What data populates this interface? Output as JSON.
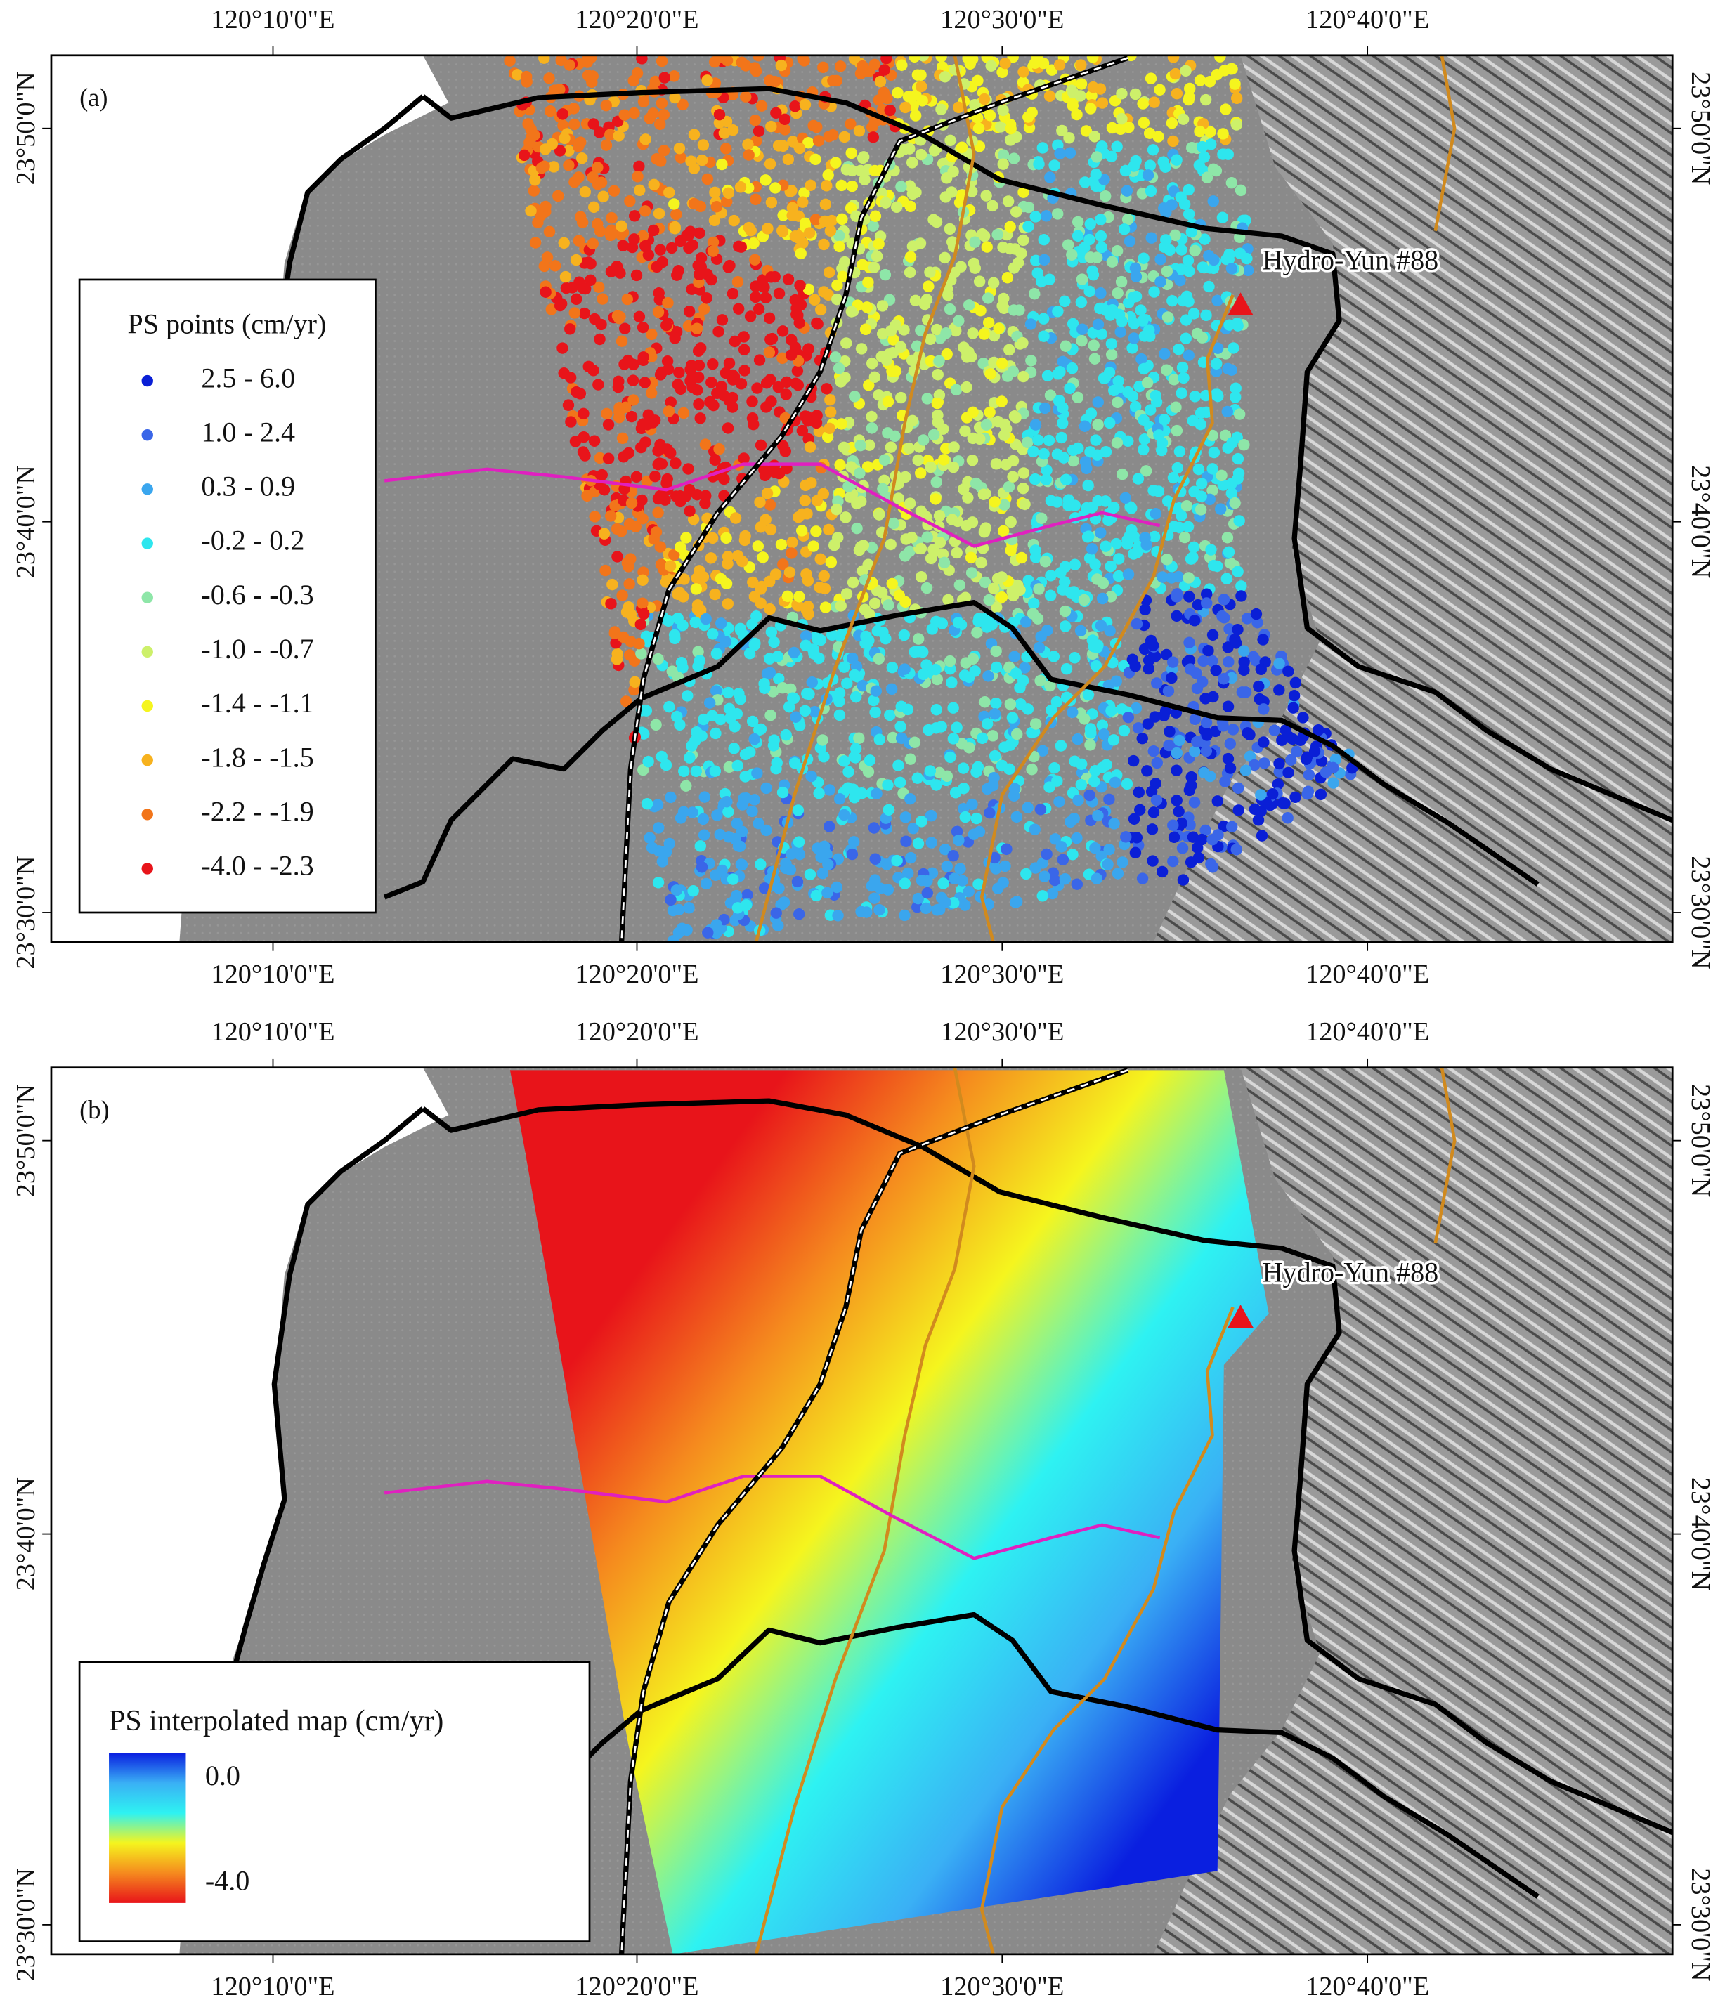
{
  "panels": [
    {
      "label": "(a)",
      "lon_labels": [
        "120°10'0\"E",
        "120°20'0\"E",
        "120°30'0\"E",
        "120°40'0\"E"
      ],
      "lat_labels": [
        "23°50'0\"N",
        "23°40'0\"N",
        "23°30'0\"N"
      ],
      "station": "Hydro-Yun #88",
      "legend": {
        "title": "PS points (cm/yr)",
        "entries": [
          {
            "label": "2.5 - 6.0",
            "color": "#0a1fd6"
          },
          {
            "label": "1.0 - 2.4",
            "color": "#3a66e8"
          },
          {
            "label": "0.3 - 0.9",
            "color": "#3aa6ee"
          },
          {
            "label": "-0.2 - 0.2",
            "color": "#2ee6ee"
          },
          {
            "label": "-0.6 - -0.3",
            "color": "#8ee6a8"
          },
          {
            "label": "-1.0 - -0.7",
            "color": "#cdf06a"
          },
          {
            "label": "-1.4 - -1.1",
            "color": "#f5f51e"
          },
          {
            "label": "-1.8 - -1.5",
            "color": "#f7b21e"
          },
          {
            "label": "-2.2 - -1.9",
            "color": "#f2751a"
          },
          {
            "label": "-4.0 - -2.3",
            "color": "#e8141a"
          }
        ]
      }
    },
    {
      "label": "(b)",
      "lon_labels": [
        "120°10'0\"E",
        "120°20'0\"E",
        "120°30'0\"E",
        "120°40'0\"E"
      ],
      "lat_labels": [
        "23°50'0\"N",
        "23°40'0\"N",
        "23°30'0\"N"
      ],
      "station": "Hydro-Yun #88",
      "legend": {
        "title": "PS interpolated map (cm/yr)",
        "max_label": "0.0",
        "min_label": "-4.0",
        "colors": [
          "#0a1fe0",
          "#3ab0f5",
          "#2ef2f2",
          "#f5f51e",
          "#f58a1e",
          "#e8141a"
        ]
      }
    }
  ]
}
